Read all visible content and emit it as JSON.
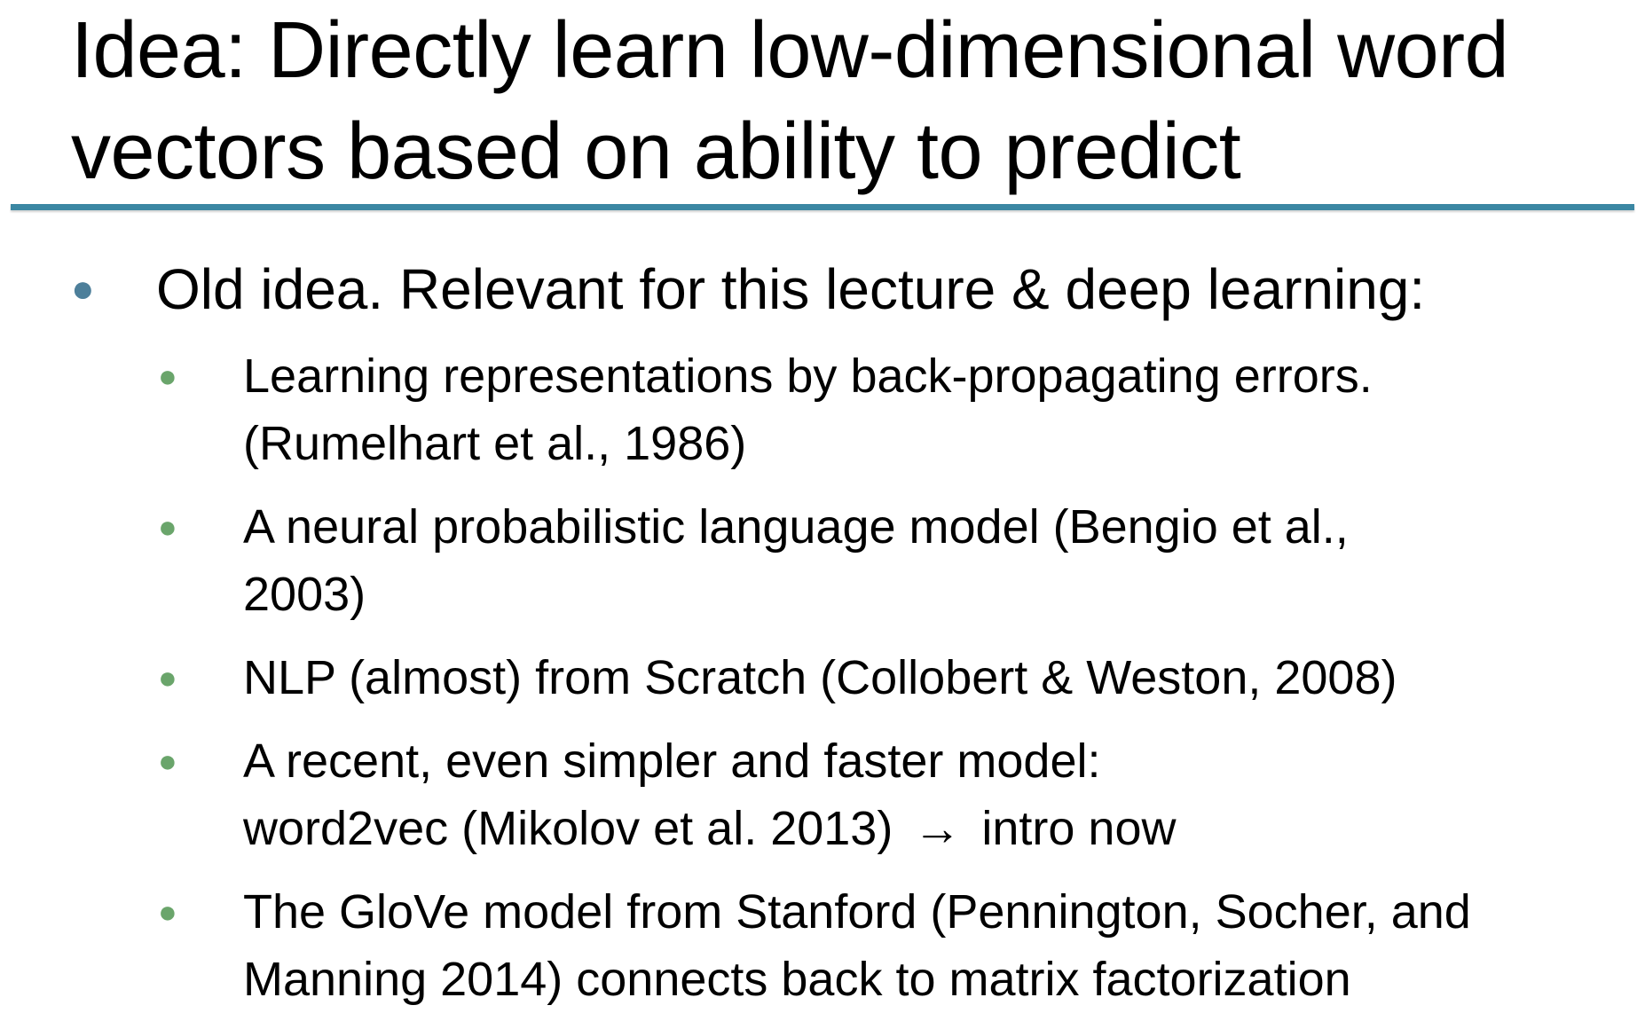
{
  "title": {
    "line1": "Idea: Directly learn low-dimensional word",
    "line2": "vectors based on ability to predict"
  },
  "main_bullet": "Old idea. Relevant for this lecture & deep learning:",
  "sub_bullets": [
    {
      "line1": "Learning representations by back-propagating errors.",
      "line2": "(Rumelhart et al., 1986)"
    },
    {
      "line1": "A neural probabilistic language model (Bengio et al.,",
      "line2": "2003)"
    },
    {
      "line1": "NLP (almost) from Scratch (Collobert & Weston, 2008)"
    },
    {
      "line1": "A recent, even simpler and faster model:",
      "line2_a": "word2vec (Mikolov et al. 2013)",
      "arrow": "→",
      "line2_b": "intro now"
    },
    {
      "line1": "The GloVe model from Stanford (Pennington, Socher, and",
      "line2": "Manning 2014) connects back to matrix factorization"
    }
  ],
  "colors": {
    "rule": "#3b87a3",
    "main_bullet": "#4d7f9a",
    "sub_bullet": "#6aa56b"
  }
}
